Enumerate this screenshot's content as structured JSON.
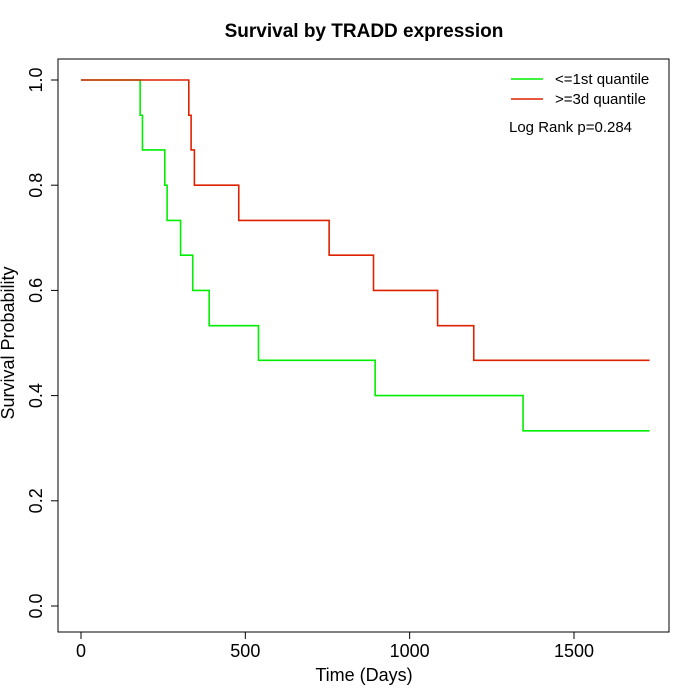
{
  "chart_data": {
    "type": "line",
    "step": true,
    "title": "Survival by TRADD expression",
    "xlabel": "Time (Days)",
    "ylabel": "Survival Probability",
    "xlim": [
      0,
      1730
    ],
    "ylim": [
      0,
      1
    ],
    "x_ticks": [
      0,
      500,
      1000,
      1500
    ],
    "x_tick_labels": [
      "0",
      "500",
      "1000",
      "1500"
    ],
    "y_ticks": [
      0,
      0.2,
      0.4,
      0.6,
      0.8,
      1.0
    ],
    "y_tick_labels": [
      "0.0",
      "0.2",
      "0.4",
      "0.6",
      "0.8",
      "1.0"
    ],
    "grid": false,
    "legend_position": "top-right",
    "annotation": "Log Rank p=0.284",
    "series": [
      {
        "name": "<=1st quantile",
        "color": "#00ee00",
        "x": [
          0,
          180,
          187,
          255,
          262,
          303,
          340,
          390,
          540,
          895,
          1345,
          1730
        ],
        "y": [
          1.0,
          0.933,
          0.867,
          0.8,
          0.733,
          0.667,
          0.6,
          0.533,
          0.467,
          0.4,
          0.333,
          0.333
        ]
      },
      {
        "name": ">=3d quantile",
        "color": "#dd2200",
        "x": [
          0,
          328,
          335,
          345,
          480,
          755,
          890,
          1085,
          1195,
          1730
        ],
        "y": [
          1.0,
          0.933,
          0.867,
          0.8,
          0.733,
          0.667,
          0.6,
          0.533,
          0.467,
          0.467
        ]
      }
    ]
  }
}
